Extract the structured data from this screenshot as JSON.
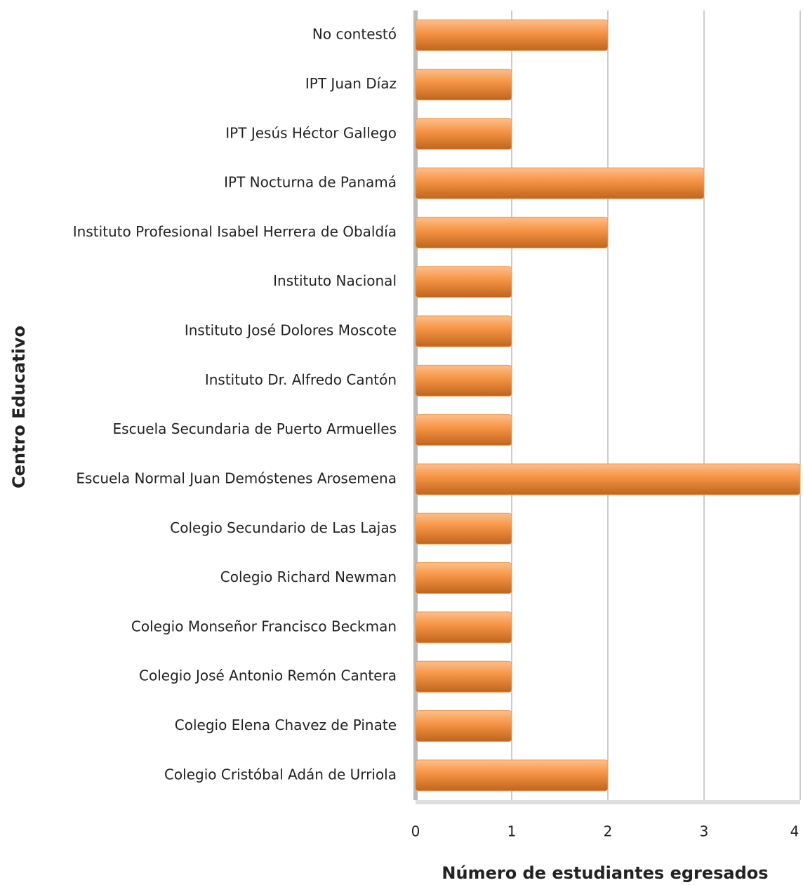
{
  "chart_data": {
    "type": "bar",
    "orientation": "horizontal",
    "x_axis_label": "Número de estudiantes egresados",
    "y_axis_label": "Centro Educativo",
    "categories": [
      "No contestó",
      "IPT Juan Díaz",
      "IPT Jesús Héctor Gallego",
      "IPT Nocturna de Panamá",
      "Instituto Profesional Isabel Herrera de Obaldía",
      "Instituto Nacional",
      "Instituto José Dolores Moscote",
      "Instituto Dr. Alfredo Cantón",
      "Escuela Secundaria de Puerto Armuelles",
      "Escuela Normal Juan Demóstenes Arosemena",
      "Colegio Secundario de Las Lajas",
      "Colegio Richard Newman",
      "Colegio Monseñor Francisco Beckman",
      "Colegio José Antonio Remón Cantera",
      "Colegio Elena Chavez de Pinate",
      "Colegio Cristóbal Adán de Urriola"
    ],
    "values": [
      2,
      1,
      1,
      3,
      2,
      1,
      1,
      1,
      1,
      4,
      1,
      1,
      1,
      1,
      1,
      2
    ],
    "color": "#f79646",
    "xlim": [
      0,
      4
    ],
    "xticks": [
      0,
      1,
      2,
      3,
      4
    ],
    "grid": true
  }
}
